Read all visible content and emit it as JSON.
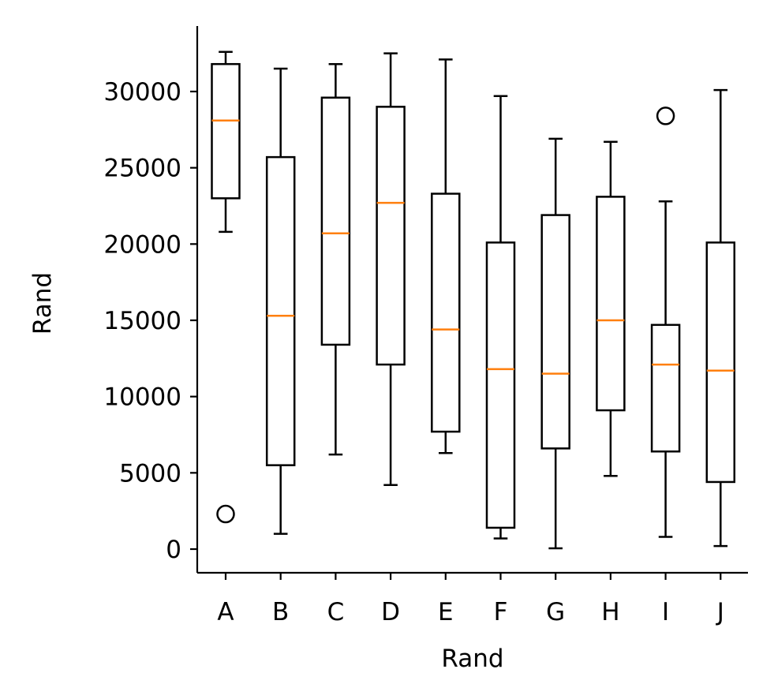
{
  "chart_data": {
    "type": "box",
    "title": "",
    "xlabel": "Rand",
    "ylabel": "Rand",
    "ylim": [
      -1500,
      34500
    ],
    "yticks": [
      0,
      5000,
      10000,
      15000,
      20000,
      25000,
      30000
    ],
    "categories": [
      "A",
      "B",
      "C",
      "D",
      "E",
      "F",
      "G",
      "H",
      "I",
      "J"
    ],
    "boxes": [
      {
        "label": "A",
        "whisker_low": 20800,
        "q1": 23000,
        "median": 28100,
        "q3": 31800,
        "whisker_high": 32600,
        "outliers": [
          2300
        ]
      },
      {
        "label": "B",
        "whisker_low": 1000,
        "q1": 5500,
        "median": 15300,
        "q3": 25700,
        "whisker_high": 31500,
        "outliers": []
      },
      {
        "label": "C",
        "whisker_low": 6200,
        "q1": 13400,
        "median": 20700,
        "q3": 29600,
        "whisker_high": 31800,
        "outliers": []
      },
      {
        "label": "D",
        "whisker_low": 4200,
        "q1": 12100,
        "median": 22700,
        "q3": 29000,
        "whisker_high": 32500,
        "outliers": []
      },
      {
        "label": "E",
        "whisker_low": 6300,
        "q1": 7700,
        "median": 14400,
        "q3": 23300,
        "whisker_high": 32100,
        "outliers": []
      },
      {
        "label": "F",
        "whisker_low": 700,
        "q1": 1400,
        "median": 11800,
        "q3": 20100,
        "whisker_high": 29700,
        "outliers": []
      },
      {
        "label": "G",
        "whisker_low": 50,
        "q1": 6600,
        "median": 11500,
        "q3": 21900,
        "whisker_high": 26900,
        "outliers": []
      },
      {
        "label": "H",
        "whisker_low": 4800,
        "q1": 9100,
        "median": 15000,
        "q3": 23100,
        "whisker_high": 26700,
        "outliers": []
      },
      {
        "label": "I",
        "whisker_low": 800,
        "q1": 6400,
        "median": 12100,
        "q3": 14700,
        "whisker_high": 22800,
        "outliers": [
          28400
        ]
      },
      {
        "label": "J",
        "whisker_low": 200,
        "q1": 4400,
        "median": 11700,
        "q3": 20100,
        "whisker_high": 30100,
        "outliers": []
      }
    ],
    "colors": {
      "box": "#000000",
      "median": "#ff7f0e",
      "outlier_edge": "#000000"
    },
    "grid": false,
    "legend": "none",
    "spines": [
      "left",
      "bottom"
    ]
  }
}
